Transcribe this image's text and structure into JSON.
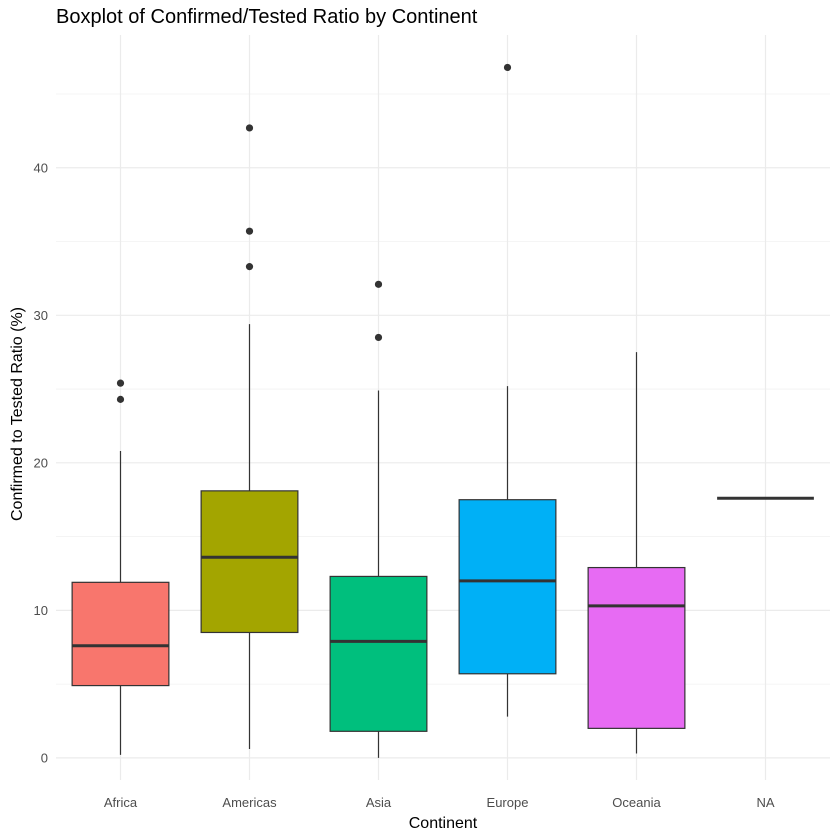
{
  "chart_data": {
    "type": "boxplot",
    "title": "Boxplot of Confirmed/Tested Ratio by Continent",
    "xlabel": "Continent",
    "ylabel": "Confirmed to Tested Ratio (%)",
    "ylim": [
      -1.5,
      49
    ],
    "yticks": [
      0,
      10,
      20,
      30,
      40
    ],
    "grid": true,
    "legend": "none",
    "categories": [
      "Africa",
      "Americas",
      "Asia",
      "Europe",
      "Oceania",
      "NA"
    ],
    "boxes": [
      {
        "category": "Africa",
        "color": "#F8766D",
        "whisker_low": 0.2,
        "q1": 4.9,
        "median": 7.6,
        "q3": 11.9,
        "whisker_high": 20.8,
        "outliers": [
          24.3,
          25.4
        ]
      },
      {
        "category": "Americas",
        "color": "#A3A500",
        "whisker_low": 0.6,
        "q1": 8.5,
        "median": 13.6,
        "q3": 18.1,
        "whisker_high": 29.4,
        "outliers": [
          33.3,
          35.7,
          42.7
        ]
      },
      {
        "category": "Asia",
        "color": "#00BF7D",
        "whisker_low": 0.0,
        "q1": 1.8,
        "median": 7.9,
        "q3": 12.3,
        "whisker_high": 24.9,
        "outliers": [
          28.5,
          32.1
        ]
      },
      {
        "category": "Europe",
        "color": "#00B0F6",
        "whisker_low": 2.8,
        "q1": 5.7,
        "median": 12.0,
        "q3": 17.5,
        "whisker_high": 25.2,
        "outliers": [
          46.8
        ]
      },
      {
        "category": "Oceania",
        "color": "#E76BF3",
        "whisker_low": 0.3,
        "q1": 2.0,
        "median": 10.3,
        "q3": 12.9,
        "whisker_high": 27.5,
        "outliers": []
      },
      {
        "category": "NA",
        "color": "#FFFFFF",
        "whisker_low": 17.6,
        "q1": 17.6,
        "median": 17.6,
        "q3": 17.6,
        "whisker_high": 17.6,
        "outliers": []
      }
    ]
  }
}
